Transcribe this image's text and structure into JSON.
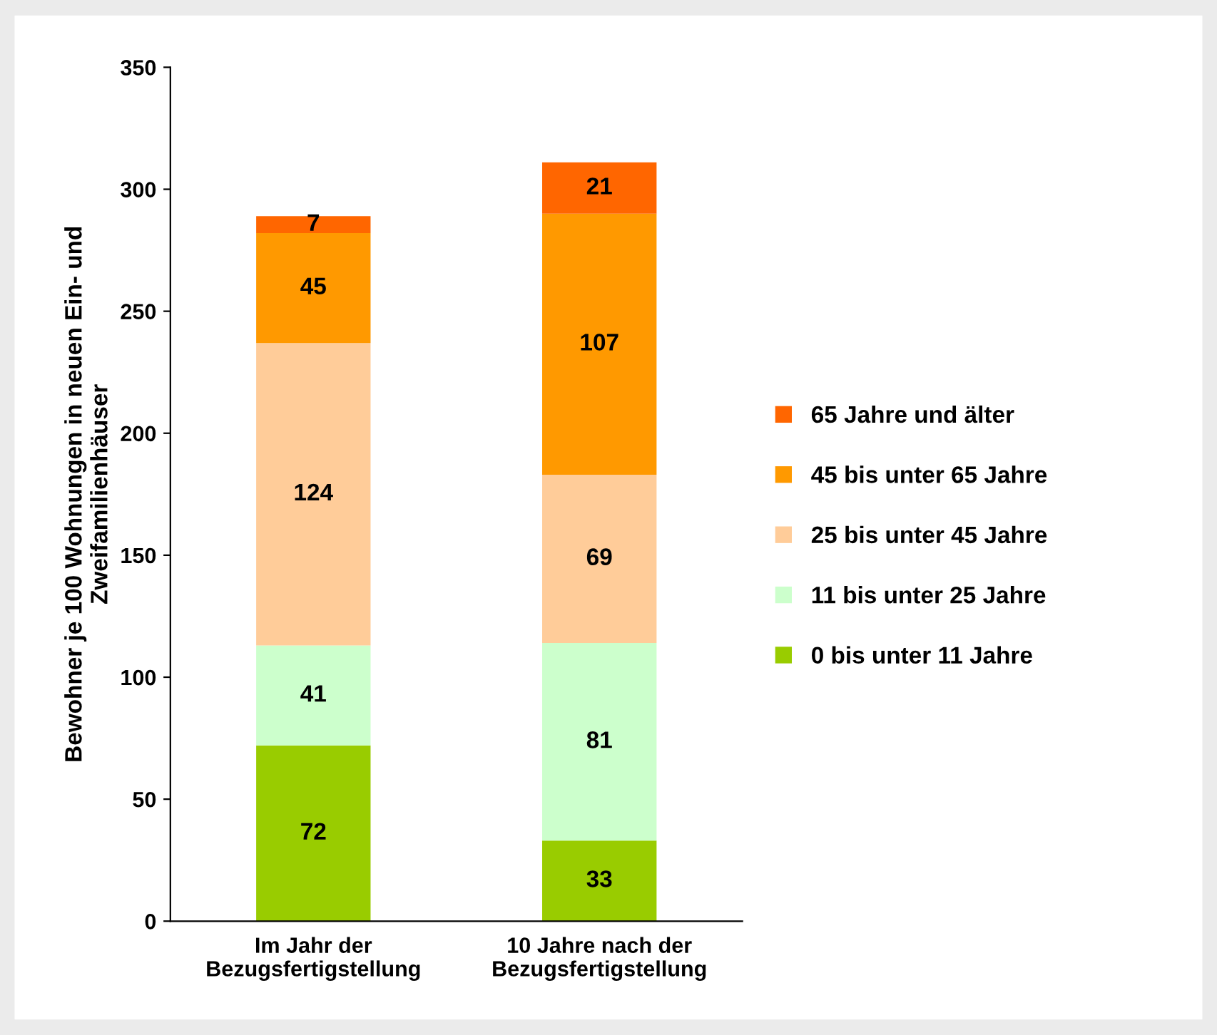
{
  "chart_data": {
    "type": "bar",
    "stacked": true,
    "ylabel": "Bewohner je 100 Wohnungen in neuen Ein- und\nZweifamilienhäuser",
    "categories": [
      "Im Jahr der\nBezugsfertigstellung",
      "10 Jahre nach der\nBezugsfertigstellung"
    ],
    "series": [
      {
        "name": "0 bis unter 11 Jahre",
        "color": "#99cc00",
        "values": [
          72,
          33
        ]
      },
      {
        "name": "11 bis unter 25 Jahre",
        "color": "#ccffcc",
        "values": [
          41,
          81
        ]
      },
      {
        "name": "25 bis unter 45 Jahre",
        "color": "#ffcc99",
        "values": [
          124,
          69
        ]
      },
      {
        "name": "45 bis unter 65 Jahre",
        "color": "#ff9900",
        "values": [
          45,
          107
        ]
      },
      {
        "name": "65 Jahre und älter",
        "color": "#ff6600",
        "values": [
          7,
          21
        ]
      }
    ],
    "ylim": [
      0,
      350
    ],
    "yticks": [
      0,
      50,
      100,
      150,
      200,
      250,
      300,
      350
    ],
    "data_labels": true,
    "grid": false,
    "legend": "right"
  }
}
